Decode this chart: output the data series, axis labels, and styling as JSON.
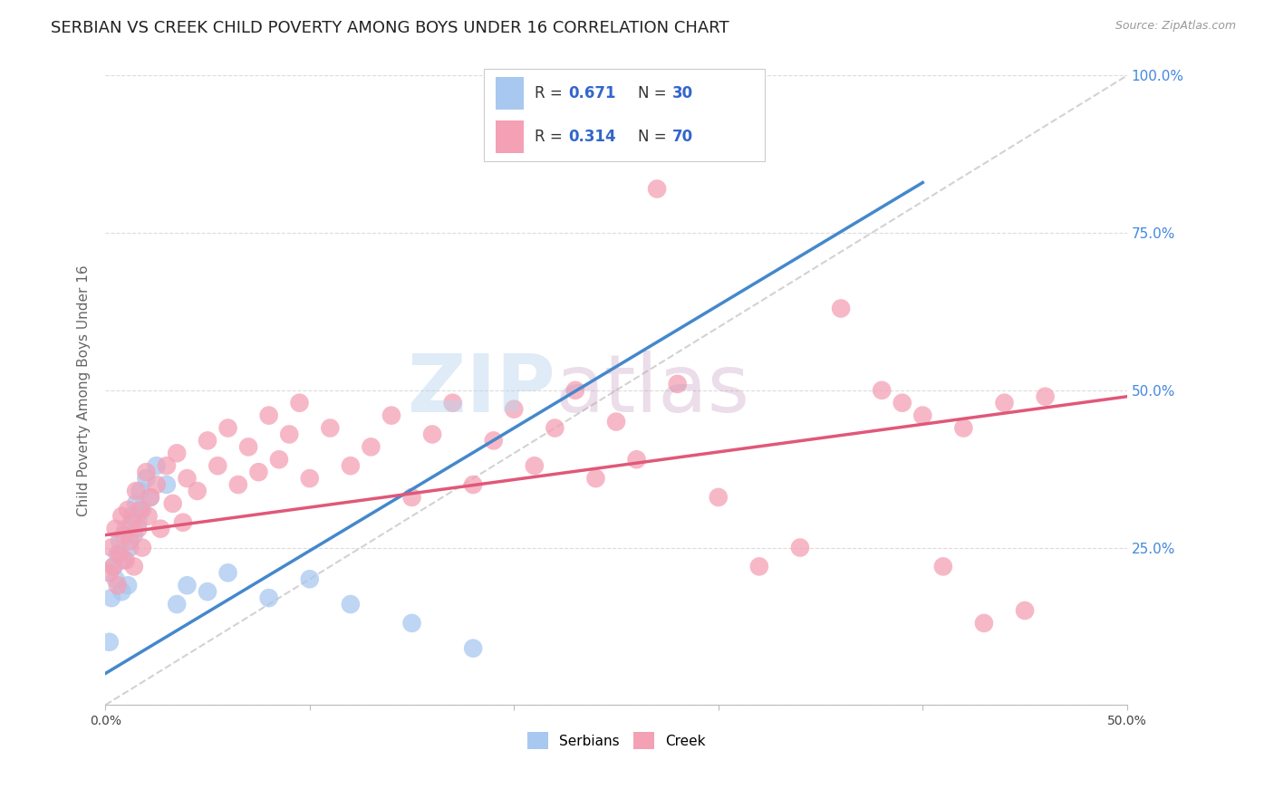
{
  "title": "SERBIAN VS CREEK CHILD POVERTY AMONG BOYS UNDER 16 CORRELATION CHART",
  "source": "Source: ZipAtlas.com",
  "ylabel": "Child Poverty Among Boys Under 16",
  "xlim": [
    0.0,
    0.5
  ],
  "ylim": [
    0.0,
    1.0
  ],
  "xtick_positions": [
    0.0,
    0.1,
    0.2,
    0.3,
    0.4,
    0.5
  ],
  "xticklabels": [
    "0.0%",
    "",
    "",
    "",
    "",
    "50.0%"
  ],
  "ytick_positions": [
    0.0,
    0.25,
    0.5,
    0.75,
    1.0
  ],
  "right_yticklabels": [
    "",
    "25.0%",
    "50.0%",
    "75.0%",
    "100.0%"
  ],
  "serbian_R": "0.671",
  "serbian_N": "30",
  "creek_R": "0.314",
  "creek_N": "70",
  "serbian_scatter_color": "#a8c8f0",
  "creek_scatter_color": "#f4a0b5",
  "serbian_line_color": "#4488cc",
  "creek_line_color": "#e05878",
  "diagonal_color": "#c0c0c0",
  "background_color": "#ffffff",
  "grid_color": "#d8d8d8",
  "axis_label_color": "#666666",
  "right_tick_color": "#4488dd",
  "title_color": "#222222",
  "source_color": "#999999",
  "watermark_zip_color": "#b8d4ee",
  "watermark_atlas_color": "#c8a0c0",
  "legend_text_color": "#333333",
  "legend_value_color": "#3366cc",
  "legend_border_color": "#cccccc",
  "serb_line_x0": 0.0,
  "serb_line_y0": 0.05,
  "serb_line_x1": 0.4,
  "serb_line_y1": 0.83,
  "creek_line_x0": 0.0,
  "creek_line_y0": 0.27,
  "creek_line_x1": 0.5,
  "creek_line_y1": 0.49,
  "serbian_points": [
    [
      0.002,
      0.1
    ],
    [
      0.003,
      0.17
    ],
    [
      0.004,
      0.22
    ],
    [
      0.005,
      0.2
    ],
    [
      0.006,
      0.24
    ],
    [
      0.007,
      0.26
    ],
    [
      0.008,
      0.18
    ],
    [
      0.009,
      0.23
    ],
    [
      0.01,
      0.28
    ],
    [
      0.011,
      0.19
    ],
    [
      0.012,
      0.25
    ],
    [
      0.013,
      0.3
    ],
    [
      0.014,
      0.27
    ],
    [
      0.015,
      0.32
    ],
    [
      0.016,
      0.29
    ],
    [
      0.017,
      0.34
    ],
    [
      0.018,
      0.31
    ],
    [
      0.02,
      0.36
    ],
    [
      0.022,
      0.33
    ],
    [
      0.025,
      0.38
    ],
    [
      0.03,
      0.35
    ],
    [
      0.035,
      0.16
    ],
    [
      0.04,
      0.19
    ],
    [
      0.05,
      0.18
    ],
    [
      0.06,
      0.21
    ],
    [
      0.08,
      0.17
    ],
    [
      0.1,
      0.2
    ],
    [
      0.12,
      0.16
    ],
    [
      0.15,
      0.13
    ],
    [
      0.18,
      0.09
    ]
  ],
  "creek_points": [
    [
      0.002,
      0.21
    ],
    [
      0.003,
      0.25
    ],
    [
      0.004,
      0.22
    ],
    [
      0.005,
      0.28
    ],
    [
      0.006,
      0.19
    ],
    [
      0.007,
      0.24
    ],
    [
      0.008,
      0.3
    ],
    [
      0.009,
      0.27
    ],
    [
      0.01,
      0.23
    ],
    [
      0.011,
      0.31
    ],
    [
      0.012,
      0.26
    ],
    [
      0.013,
      0.29
    ],
    [
      0.014,
      0.22
    ],
    [
      0.015,
      0.34
    ],
    [
      0.016,
      0.28
    ],
    [
      0.017,
      0.31
    ],
    [
      0.018,
      0.25
    ],
    [
      0.02,
      0.37
    ],
    [
      0.021,
      0.3
    ],
    [
      0.022,
      0.33
    ],
    [
      0.025,
      0.35
    ],
    [
      0.027,
      0.28
    ],
    [
      0.03,
      0.38
    ],
    [
      0.033,
      0.32
    ],
    [
      0.035,
      0.4
    ],
    [
      0.038,
      0.29
    ],
    [
      0.04,
      0.36
    ],
    [
      0.045,
      0.34
    ],
    [
      0.05,
      0.42
    ],
    [
      0.055,
      0.38
    ],
    [
      0.06,
      0.44
    ],
    [
      0.065,
      0.35
    ],
    [
      0.07,
      0.41
    ],
    [
      0.075,
      0.37
    ],
    [
      0.08,
      0.46
    ],
    [
      0.085,
      0.39
    ],
    [
      0.09,
      0.43
    ],
    [
      0.095,
      0.48
    ],
    [
      0.1,
      0.36
    ],
    [
      0.11,
      0.44
    ],
    [
      0.12,
      0.38
    ],
    [
      0.13,
      0.41
    ],
    [
      0.14,
      0.46
    ],
    [
      0.15,
      0.33
    ],
    [
      0.16,
      0.43
    ],
    [
      0.17,
      0.48
    ],
    [
      0.18,
      0.35
    ],
    [
      0.19,
      0.42
    ],
    [
      0.2,
      0.47
    ],
    [
      0.21,
      0.38
    ],
    [
      0.22,
      0.44
    ],
    [
      0.23,
      0.5
    ],
    [
      0.24,
      0.36
    ],
    [
      0.25,
      0.45
    ],
    [
      0.26,
      0.39
    ],
    [
      0.27,
      0.82
    ],
    [
      0.28,
      0.51
    ],
    [
      0.3,
      0.33
    ],
    [
      0.32,
      0.22
    ],
    [
      0.34,
      0.25
    ],
    [
      0.36,
      0.63
    ],
    [
      0.38,
      0.5
    ],
    [
      0.39,
      0.48
    ],
    [
      0.4,
      0.46
    ],
    [
      0.41,
      0.22
    ],
    [
      0.42,
      0.44
    ],
    [
      0.43,
      0.13
    ],
    [
      0.44,
      0.48
    ],
    [
      0.45,
      0.15
    ],
    [
      0.46,
      0.49
    ]
  ]
}
